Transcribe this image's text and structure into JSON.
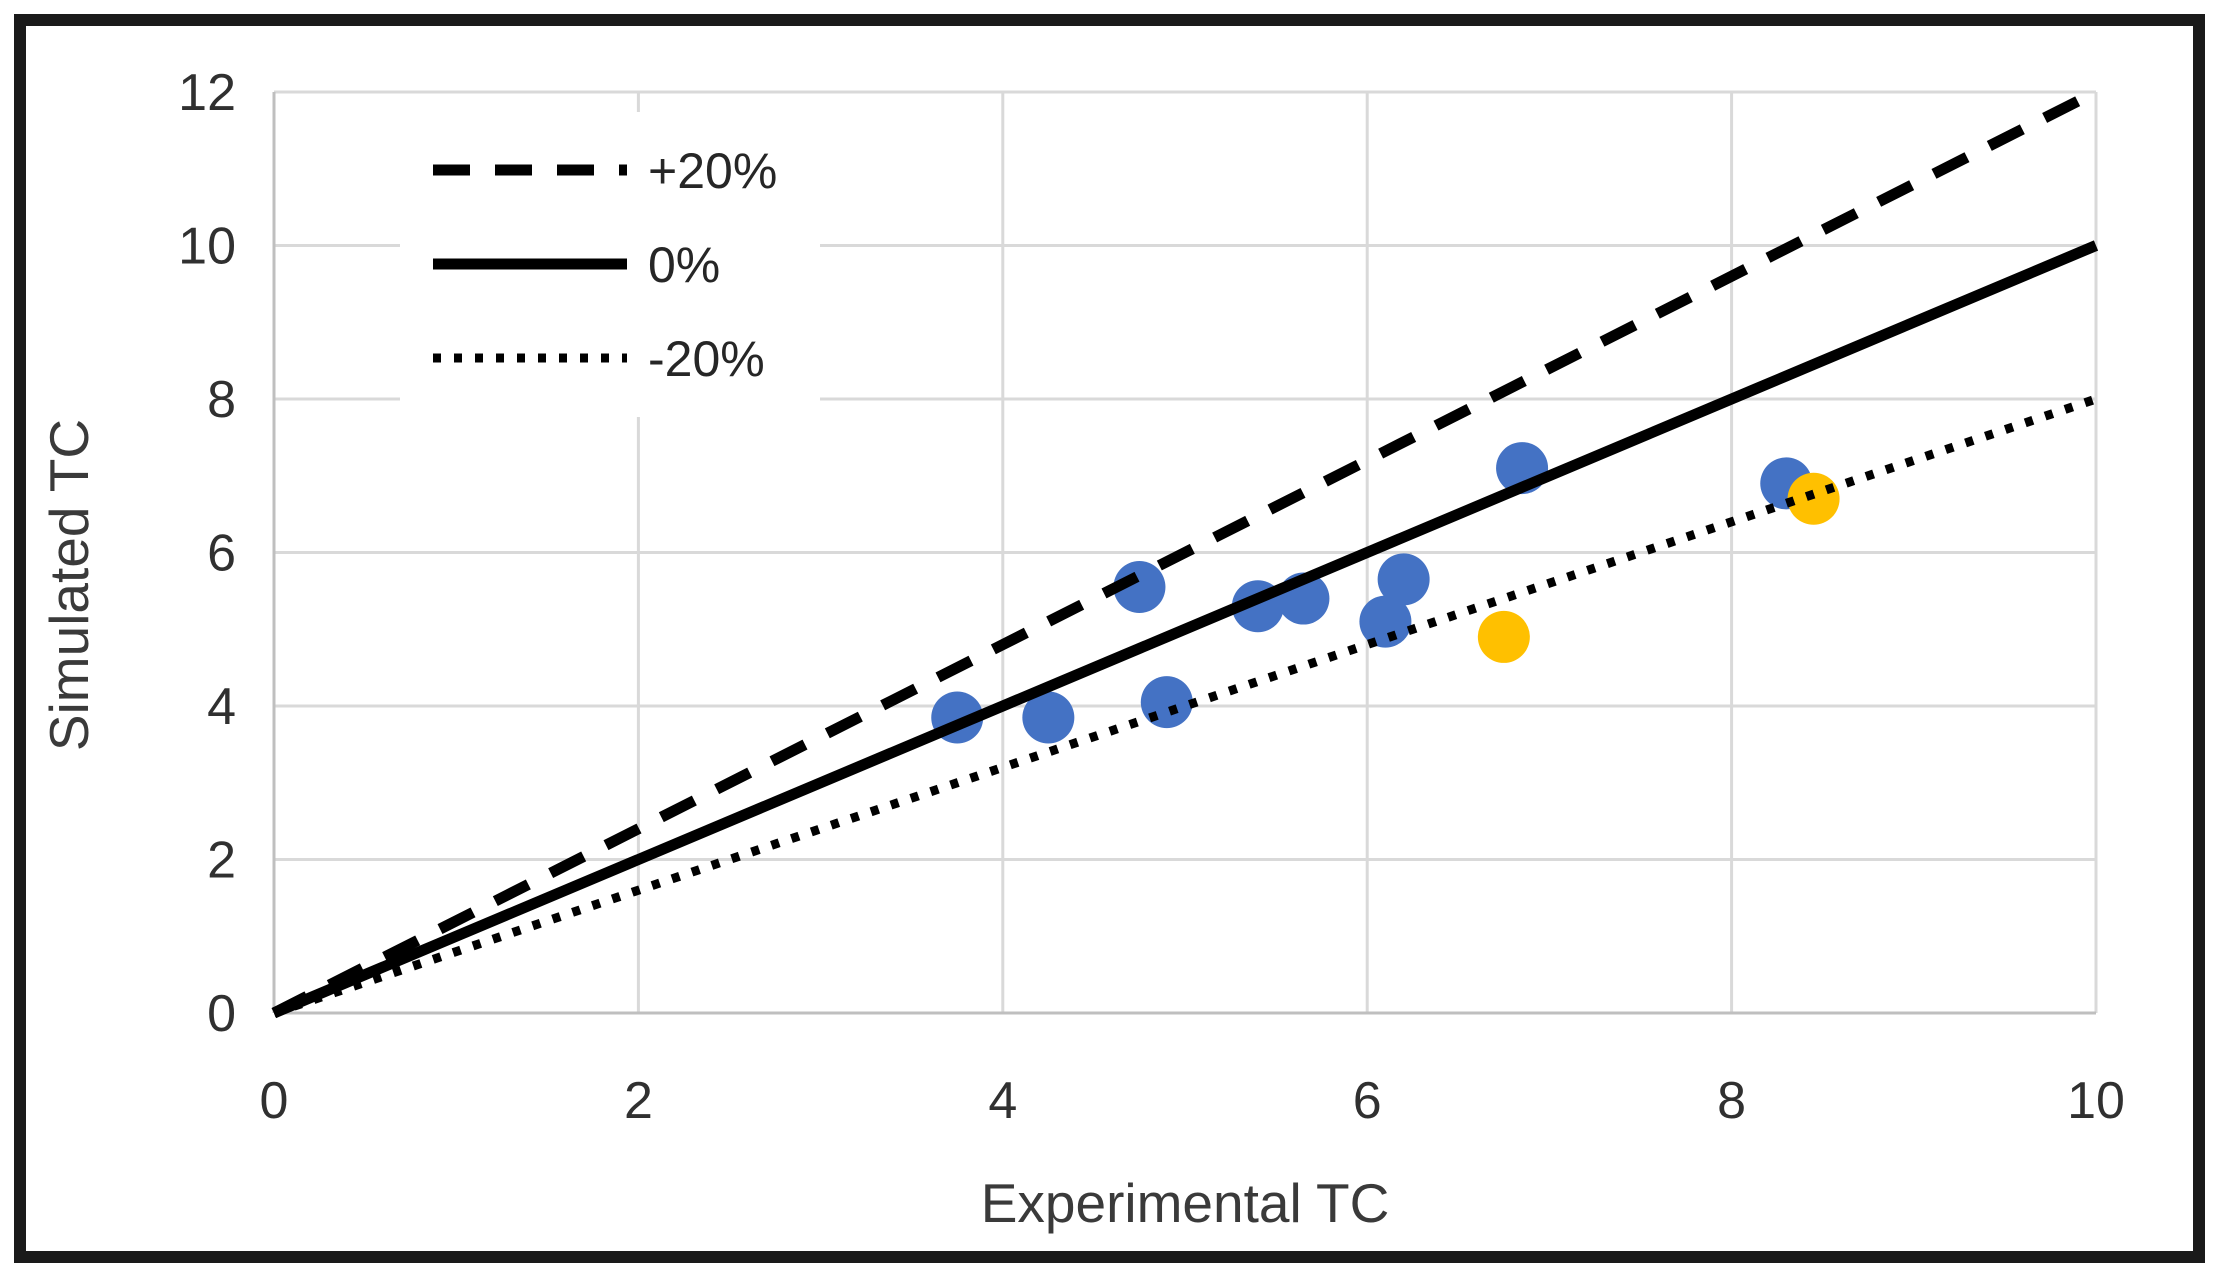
{
  "chart_data": {
    "type": "scatter",
    "title": "",
    "xlabel": "Experimental TC",
    "ylabel": "Simulated TC",
    "xlim": [
      0,
      10
    ],
    "ylim": [
      0,
      12
    ],
    "xticks": [
      0,
      2,
      4,
      6,
      8,
      10
    ],
    "yticks": [
      0,
      2,
      4,
      6,
      8,
      10,
      12
    ],
    "grid": true,
    "legend": {
      "position": "inside-top-left",
      "entries": [
        {
          "label": "+20%",
          "line_style": "dashed"
        },
        {
          "label": "0%",
          "line_style": "solid"
        },
        {
          "label": "-20%",
          "line_style": "dotted"
        }
      ]
    },
    "reference_lines": [
      {
        "label": "+20%",
        "style": "dashed",
        "color": "#000000",
        "from": [
          0,
          0
        ],
        "to": [
          10,
          12
        ]
      },
      {
        "label": "0%",
        "style": "solid",
        "color": "#000000",
        "from": [
          0,
          0
        ],
        "to": [
          10,
          10
        ]
      },
      {
        "label": "-20%",
        "style": "dotted",
        "color": "#000000",
        "from": [
          0,
          0
        ],
        "to": [
          10,
          8
        ]
      }
    ],
    "series": [
      {
        "name": "blue-markers",
        "color": "#4472C4",
        "points": [
          [
            3.75,
            3.85
          ],
          [
            4.25,
            3.85
          ],
          [
            4.75,
            5.55
          ],
          [
            4.9,
            4.05
          ],
          [
            5.4,
            5.3
          ],
          [
            5.65,
            5.4
          ],
          [
            6.1,
            5.1
          ],
          [
            6.2,
            5.65
          ],
          [
            6.85,
            7.1
          ],
          [
            8.3,
            6.9
          ]
        ]
      },
      {
        "name": "orange-markers",
        "color": "#FFC000",
        "points": [
          [
            6.75,
            4.9
          ],
          [
            8.45,
            6.7
          ]
        ]
      }
    ],
    "colors": {
      "grid": "#D9D9D9",
      "axis": "#BFBFBF",
      "text": "#303030",
      "line": "#000000",
      "background": "#FFFFFF",
      "border": "#1A1A1A"
    }
  }
}
